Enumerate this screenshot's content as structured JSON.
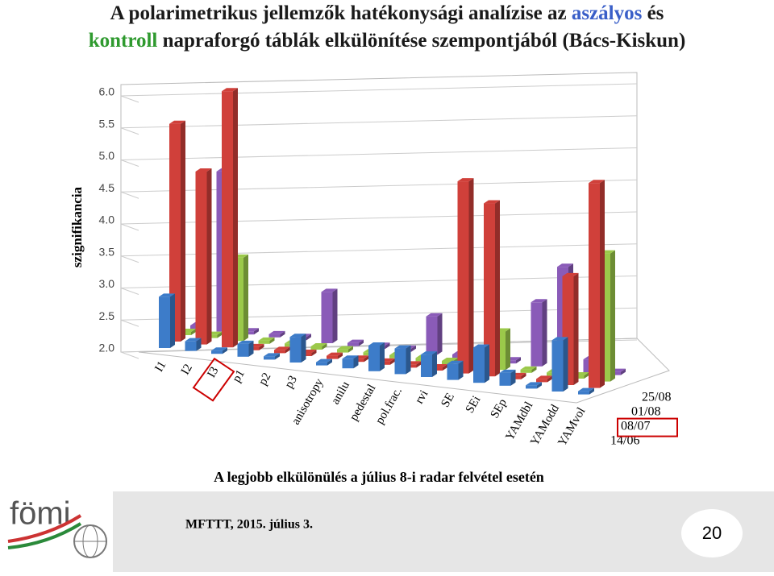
{
  "header": {
    "title_line1": [
      {
        "text": "A polarimetrikus jellemzők hatékonysági analízise az ",
        "color": "#1a1a1a"
      },
      {
        "text": "aszályos",
        "color": "#3a5fc8"
      },
      {
        "text": " és",
        "color": "#1a1a1a"
      }
    ],
    "title_line2": [
      {
        "text": "kontroll",
        "color": "#2f9a2f"
      },
      {
        "text": " napraforgó táblák elkülönítése szempontjából (Bács-Kiskun)",
        "color": "#1a1a1a"
      }
    ]
  },
  "chart_data": {
    "type": "bar3d",
    "ylabel": "szignifikancia",
    "categories": [
      "I1",
      "I2",
      "I3",
      "p1",
      "p2",
      "p3",
      "anisotropy",
      "anilu",
      "pedestal",
      "pol.frac.",
      "rvi",
      "SE",
      "SEi",
      "SEp",
      "YAMdbl",
      "YAModd",
      "YAMvol"
    ],
    "series": [
      {
        "name": "14/06",
        "color": "#3d7cc9",
        "values": [
          2.8,
          2.15,
          2.05,
          2.2,
          2.05,
          2.4,
          2.05,
          2.15,
          2.4,
          2.4,
          2.35,
          2.25,
          2.55,
          2.2,
          2.05,
          2.8,
          2.05
        ]
      },
      {
        "name": "08/07",
        "color": "#d0403a",
        "values": [
          5.4,
          4.7,
          6.0,
          2.05,
          2.05,
          2.05,
          2.05,
          2.05,
          2.05,
          2.05,
          2.05,
          5.0,
          4.7,
          2.05,
          2.05,
          3.7,
          5.2
        ]
      },
      {
        "name": "01/08",
        "color": "#9bc94a",
        "values": [
          2.05,
          2.05,
          3.3,
          2.05,
          2.05,
          2.05,
          2.05,
          2.05,
          2.05,
          2.05,
          2.05,
          2.05,
          2.6,
          2.05,
          2.05,
          2.05,
          4.0
        ]
      },
      {
        "name": "25/08",
        "color": "#8a5bb8",
        "values": [
          2.05,
          4.5,
          2.05,
          2.05,
          2.05,
          2.8,
          2.05,
          2.05,
          2.05,
          2.6,
          2.05,
          2.05,
          2.05,
          3.0,
          3.6,
          2.2,
          2.05
        ]
      }
    ],
    "ylim": [
      2.0,
      6.0
    ],
    "yticks": [
      {
        "value": 2.0,
        "label": "2.0"
      },
      {
        "value": 2.5,
        "label": "2.5"
      },
      {
        "value": 3.0,
        "label": "3.0"
      },
      {
        "value": 3.5,
        "label": "3.5"
      },
      {
        "value": 4.0,
        "label": "4.0"
      },
      {
        "value": 4.5,
        "label": "4.5"
      },
      {
        "value": 5.0,
        "label": "5.0"
      },
      {
        "value": 5.5,
        "label": "5.5"
      },
      {
        "value": 6.0,
        "label": "6.0"
      }
    ],
    "grid": true,
    "highlight_category": 2,
    "highlight_series": 1
  },
  "caption": "A legjobb elkülönülés a július 8-i radar felvétel esetén",
  "footer": {
    "logo": "fömi",
    "event": "MFTTT, 2015. július 3.",
    "page": "20"
  }
}
